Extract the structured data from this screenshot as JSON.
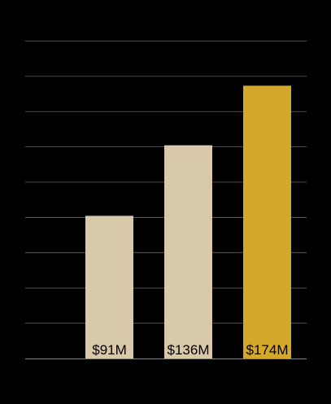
{
  "chart_data": {
    "type": "bar",
    "categories": [
      "",
      "",
      ""
    ],
    "values": [
      91,
      136,
      174
    ],
    "data_labels": [
      "$91M",
      "$136M",
      "$174M"
    ],
    "colors": [
      "#D9C9AB",
      "#D9C9AB",
      "#D4A82A"
    ],
    "label_color": "#000000",
    "grid_color": "#666666",
    "background": "#000000",
    "ylim": [
      0,
      203
    ],
    "grid_step": 22.5,
    "grid": true,
    "legend": "none"
  }
}
